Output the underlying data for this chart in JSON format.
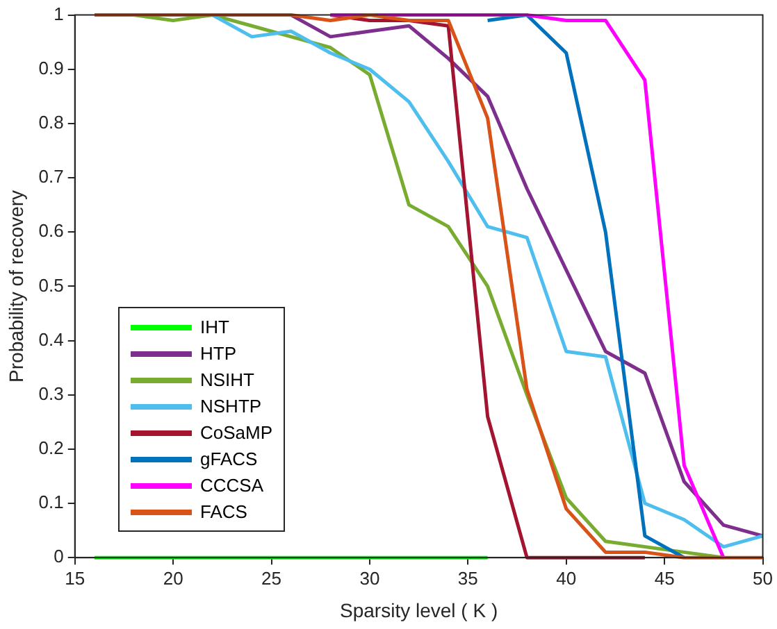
{
  "chart_data": {
    "type": "line",
    "xlabel": "Sparsity level ( K )",
    "ylabel": "Probability of recovery",
    "x": [
      16,
      18,
      20,
      22,
      24,
      26,
      28,
      30,
      32,
      34,
      36,
      38,
      40,
      42,
      44,
      46,
      48,
      50
    ],
    "xlim": [
      15,
      50
    ],
    "xticks": [
      15,
      20,
      25,
      30,
      35,
      40,
      45,
      50
    ],
    "ylim": [
      0,
      1
    ],
    "yticks": [
      0,
      0.1,
      0.2,
      0.3,
      0.4,
      0.5,
      0.6,
      0.7,
      0.8,
      0.9,
      1
    ],
    "grid": false,
    "legend": "bottom left",
    "marker": "none",
    "line_style": "solid",
    "series": [
      {
        "name": "IHT",
        "color": "#00ff00",
        "values": [
          0,
          0,
          0,
          0,
          0,
          0,
          0,
          0,
          0,
          0,
          0,
          null,
          null,
          null,
          null,
          null,
          null,
          null
        ]
      },
      {
        "name": "HTP",
        "color": "#7e2f8e",
        "values": [
          null,
          null,
          null,
          null,
          null,
          1,
          0.96,
          0.97,
          0.98,
          0.92,
          0.85,
          0.68,
          0.53,
          0.38,
          0.34,
          0.14,
          0.06,
          0.04
        ]
      },
      {
        "name": "NSIHT",
        "color": "#77ac30",
        "values": [
          null,
          1,
          0.99,
          1,
          0.98,
          0.96,
          0.94,
          0.89,
          0.65,
          0.61,
          0.5,
          0.3,
          0.11,
          0.03,
          null,
          0.01,
          0,
          null
        ]
      },
      {
        "name": "NSHTP",
        "color": "#4dbeee",
        "values": [
          null,
          null,
          null,
          1,
          0.96,
          0.97,
          0.93,
          0.9,
          0.84,
          0.73,
          0.61,
          0.59,
          0.38,
          0.37,
          0.1,
          0.07,
          0.02,
          0.04
        ]
      },
      {
        "name": "CoSaMP",
        "color": "#a2142f",
        "values": [
          null,
          null,
          null,
          null,
          null,
          null,
          1,
          0.99,
          0.99,
          0.98,
          0.26,
          0,
          0,
          0,
          0,
          null,
          null,
          null
        ]
      },
      {
        "name": "gFACS",
        "color": "#0072bd",
        "values": [
          null,
          null,
          null,
          null,
          null,
          null,
          null,
          null,
          null,
          null,
          0.99,
          1,
          0.93,
          0.6,
          0.04,
          0,
          null,
          null
        ]
      },
      {
        "name": "CCCSA",
        "color": "#ff00ff",
        "values": [
          null,
          null,
          null,
          null,
          null,
          null,
          1,
          null,
          1,
          1,
          1,
          1,
          0.99,
          0.99,
          0.88,
          0.17,
          0,
          null
        ]
      },
      {
        "name": "FACS",
        "color": "#d95319",
        "values": [
          1,
          1,
          1,
          1,
          1,
          1,
          0.99,
          1,
          0.99,
          0.99,
          0.81,
          0.31,
          0.09,
          0.01,
          0.01,
          0,
          0,
          0
        ]
      }
    ]
  }
}
